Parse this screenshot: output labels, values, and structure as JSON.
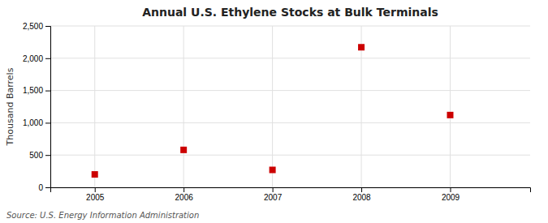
{
  "chart_data": {
    "type": "scatter",
    "title": "Annual U.S. Ethylene Stocks at Bulk Terminals",
    "ylabel": "Thousand Barrels",
    "source": "Source: U.S. Energy Information Administration",
    "x": [
      2005,
      2006,
      2007,
      2008,
      2009
    ],
    "values": [
      200,
      580,
      270,
      2170,
      1120
    ],
    "color": "#cc0000",
    "marker": "square",
    "xlim": [
      2004.5,
      2009.9
    ],
    "xticks": [
      2005,
      2006,
      2007,
      2008,
      2009
    ],
    "ylim": [
      0,
      2500
    ],
    "yticks": [
      0,
      500,
      {
        "value": 1000,
        "label": "1,000"
      },
      {
        "value": 1500,
        "label": "1,500"
      },
      {
        "value": 2000,
        "label": "2,000"
      },
      {
        "value": 2500,
        "label": "2,500"
      }
    ],
    "grid": true
  }
}
